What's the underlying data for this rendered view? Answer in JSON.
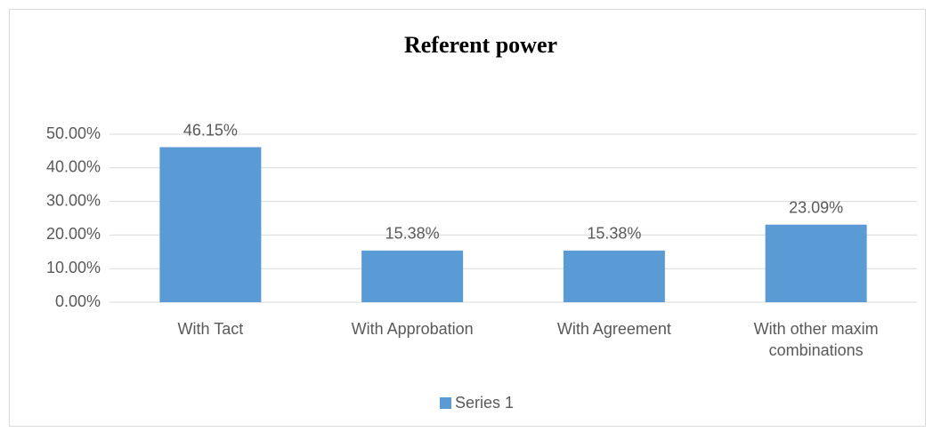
{
  "chart_data": {
    "type": "bar",
    "title": "Referent power",
    "categories": [
      "With Tact",
      "With Approbation",
      "With Agreement",
      "With other maxim combinations"
    ],
    "series": [
      {
        "name": "Series 1",
        "color": "#5b9bd5",
        "values": [
          46.15,
          15.38,
          15.38,
          23.09
        ],
        "value_labels": [
          "46.15%",
          "15.38%",
          "15.38%",
          "23.09%"
        ]
      }
    ],
    "ylim": [
      0,
      50
    ],
    "yticks": [
      {
        "value": 0,
        "label": "0.00%"
      },
      {
        "value": 10,
        "label": "10.00%"
      },
      {
        "value": 20,
        "label": "20.00%"
      },
      {
        "value": 30,
        "label": "30.00%"
      },
      {
        "value": 40,
        "label": "40.00%"
      },
      {
        "value": 50,
        "label": "50.00%"
      }
    ],
    "grid": true,
    "legend": "bottom"
  }
}
